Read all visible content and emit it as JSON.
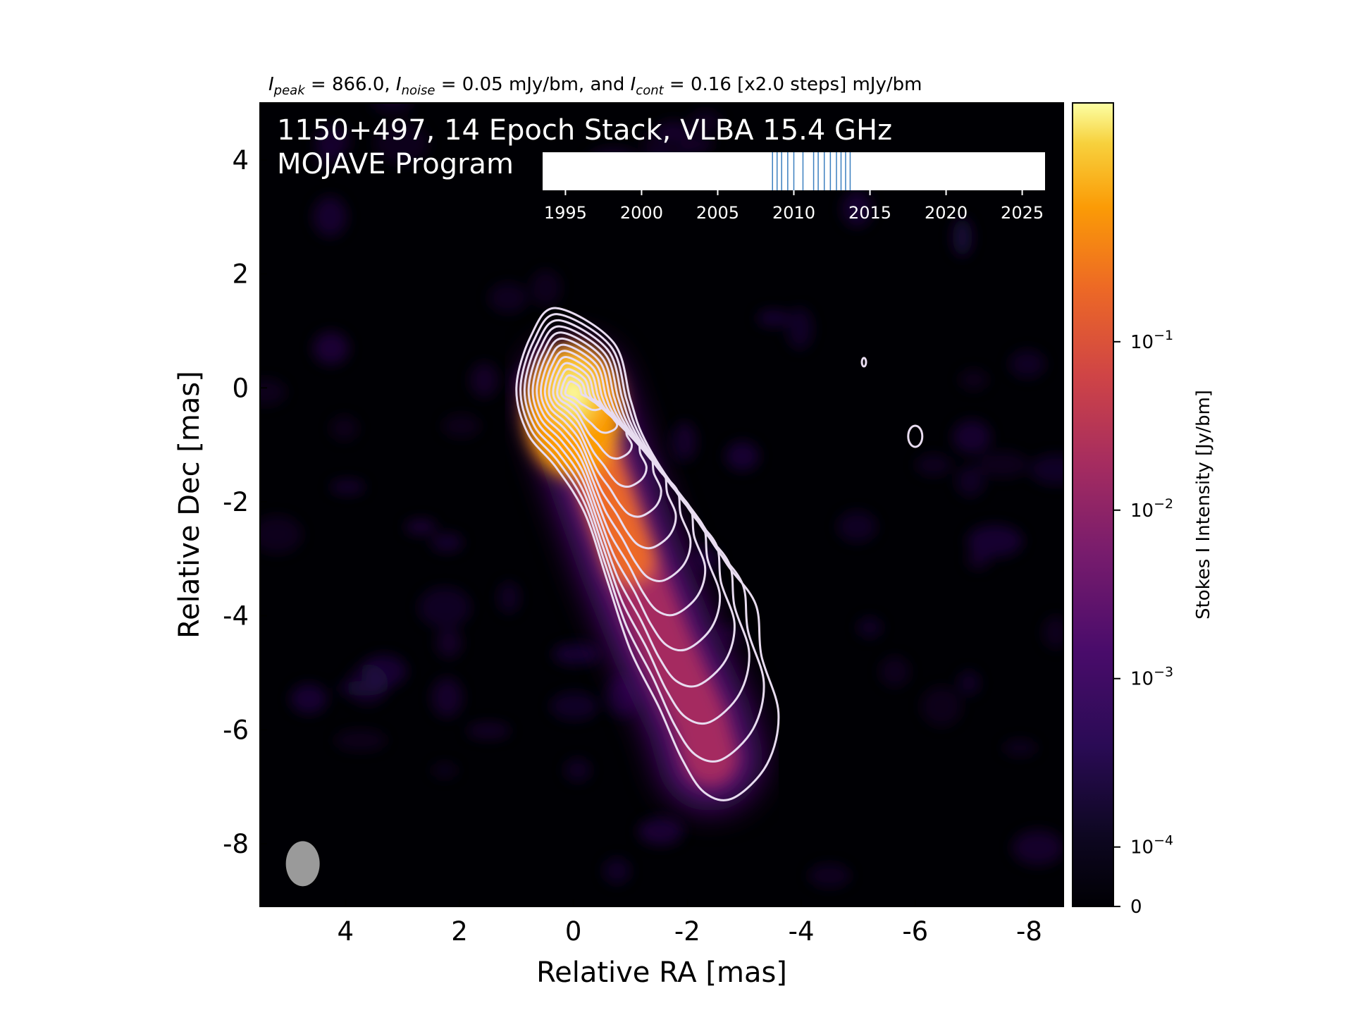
{
  "header": {
    "peak_symbol": "I",
    "peak_sub": "peak",
    "peak_value": " = 866.0, ",
    "noise_symbol": "I",
    "noise_sub": "noise",
    "noise_value": " = 0.05 mJy/bm, and ",
    "cont_symbol": "I",
    "cont_sub": "cont",
    "cont_value": " = 0.16 [x2.0 steps] mJy/bm"
  },
  "annotation": {
    "line1": "1150+497, 14 Epoch Stack, VLBA 15.4 GHz",
    "line2": "MOJAVE Program"
  },
  "colors": {
    "background": "#000004",
    "contour": "#e8dcf0",
    "beam": "#9a9a9a",
    "epoch_tick": "#3b7fbf",
    "colormap": [
      "#000004",
      "#1b0c41",
      "#4a0c6b",
      "#781c6d",
      "#a52c60",
      "#cf4446",
      "#ed6925",
      "#fb9b06",
      "#f7d13d",
      "#fcffa4"
    ]
  },
  "chart_data": {
    "type": "heatmap",
    "title": "",
    "xlabel": "Relative RA [mas]",
    "ylabel": "Relative Dec [mas]",
    "xlim": [
      5.5,
      -8.6
    ],
    "ylim": [
      -9.1,
      5.0
    ],
    "x_ticks": [
      4,
      2,
      0,
      -2,
      -4,
      -6,
      -8
    ],
    "x_tick_labels": [
      "4",
      "2",
      "0",
      "-2",
      "-4",
      "-6",
      "-8"
    ],
    "y_ticks": [
      4,
      2,
      0,
      -2,
      -4,
      -6,
      -8
    ],
    "y_tick_labels": [
      "4",
      "2",
      "0",
      "-2",
      "-4",
      "-6",
      "-8"
    ],
    "core": {
      "x": 0.0,
      "y": -0.1,
      "peak_mJy_per_beam": 866.0
    },
    "jet_ridge": [
      {
        "x": 0.0,
        "y": -0.1
      },
      {
        "x": -0.5,
        "y": -1.6
      },
      {
        "x": -1.0,
        "y": -3.0
      },
      {
        "x": -1.6,
        "y": -4.5
      },
      {
        "x": -2.2,
        "y": -5.8
      },
      {
        "x": -2.4,
        "y": -6.5
      }
    ],
    "noise_mJy_per_beam": 0.05,
    "lowest_contour_mJy_per_beam": 0.16,
    "contour_step_factor": 2.0,
    "isolated_contours": [
      {
        "x": -6.0,
        "y": -0.85
      },
      {
        "x": -5.1,
        "y": 0.45
      }
    ],
    "beam": {
      "x": 4.75,
      "y": -8.35
    },
    "colorbar": {
      "label": "Stokes I Intensity [Jy/bm]",
      "ticks": [
        0,
        0.0001,
        0.001,
        0.01,
        0.1
      ],
      "tick_labels": [
        {
          "base": "10",
          "exp": "−4"
        },
        {
          "base": "10",
          "exp": "−3"
        },
        {
          "base": "10",
          "exp": "−2"
        },
        {
          "base": "10",
          "exp": "−1"
        }
      ],
      "zero_label": "0",
      "scale": "symlog"
    },
    "epoch_timeline": {
      "xlim": [
        1993.5,
        2026.5
      ],
      "tick_years": [
        1995,
        2000,
        2005,
        2010,
        2015,
        2020,
        2025
      ],
      "tick_labels": [
        "1995",
        "2000",
        "2005",
        "2010",
        "2015",
        "2020",
        "2025"
      ],
      "epochs": [
        2008.6,
        2008.9,
        2009.2,
        2009.6,
        2010.0,
        2010.6,
        2011.3,
        2011.6,
        2012.0,
        2012.4,
        2012.8,
        2013.1,
        2013.4,
        2013.7
      ]
    }
  }
}
